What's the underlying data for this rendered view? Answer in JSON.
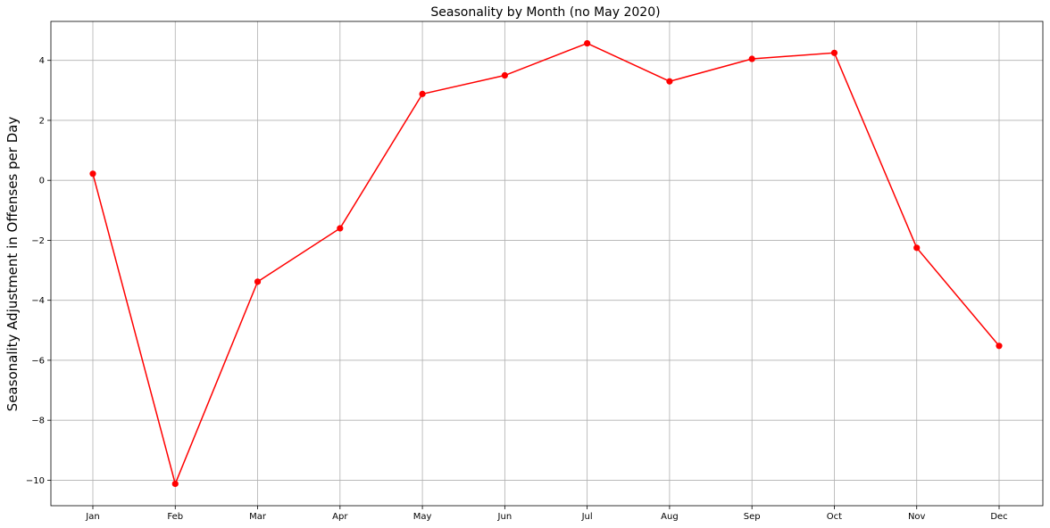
{
  "chart_data": {
    "type": "line",
    "title": "Seasonality by Month (no May 2020)",
    "xlabel": "",
    "ylabel": "Seasonality Adjustment in Offenses per Day",
    "categories": [
      "Jan",
      "Feb",
      "Mar",
      "Apr",
      "May",
      "Jun",
      "Jul",
      "Aug",
      "Sep",
      "Oct",
      "Nov",
      "Dec"
    ],
    "series": [
      {
        "values": [
          0.22,
          -10.12,
          -3.38,
          -1.6,
          2.88,
          3.5,
          4.57,
          3.3,
          4.05,
          4.25,
          -2.25,
          -5.52
        ],
        "color": "#ff0000",
        "marker": "circle"
      }
    ],
    "ylim": [
      -10.85,
      5.3
    ],
    "yticks": [
      4,
      2,
      0,
      -2,
      -4,
      -6,
      -8,
      -10
    ],
    "ytick_labels": [
      "4",
      "2",
      "0",
      "−2",
      "−4",
      "−6",
      "−8",
      "−10"
    ],
    "grid": true,
    "legend": "none"
  }
}
